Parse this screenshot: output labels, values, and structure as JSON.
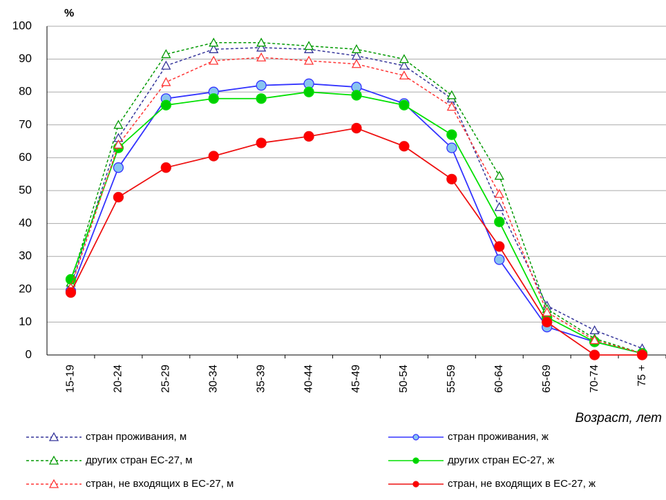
{
  "chart_data": {
    "type": "line",
    "y_label": "%",
    "x_label": "Возраст, лет",
    "categories": [
      "15-19",
      "20-24",
      "25-29",
      "30-34",
      "35-39",
      "40-44",
      "45-49",
      "50-54",
      "55-59",
      "60-64",
      "65-69",
      "70-74",
      "75 +"
    ],
    "ylim": [
      0,
      100
    ],
    "yticks": [
      0,
      10,
      20,
      30,
      40,
      50,
      60,
      70,
      80,
      90,
      100
    ],
    "grid": true,
    "series": [
      {
        "name": "стран проживания, м",
        "color": "#333399",
        "marker": "triangle",
        "marker_fill": "#ffffff",
        "dashed": true,
        "values": [
          21,
          66,
          88,
          93,
          93.5,
          93,
          91,
          88,
          78,
          45,
          15,
          7.5,
          2
        ]
      },
      {
        "name": "стран проживания, ж",
        "color": "#3333ff",
        "marker": "circle",
        "marker_fill": "#88c4f0",
        "dashed": false,
        "values": [
          19.5,
          57,
          78,
          80,
          82,
          82.5,
          81.5,
          76.5,
          63,
          29,
          8.5,
          4,
          0.5
        ]
      },
      {
        "name": "других стран ЕС-27,  м",
        "color": "#009900",
        "marker": "triangle",
        "marker_fill": "#ffffff",
        "dashed": true,
        "values": [
          22,
          70,
          91.5,
          95,
          95,
          94,
          93,
          90,
          79,
          54.5,
          14,
          5,
          0.5
        ]
      },
      {
        "name": "других стран ЕС-27,  ж",
        "color": "#00e000",
        "marker": "circle",
        "marker_fill": "#00d000",
        "dashed": false,
        "values": [
          23,
          63,
          76,
          78,
          78,
          80,
          79,
          76,
          67,
          40.5,
          11.5,
          4,
          0.5
        ]
      },
      {
        "name": "стран, не входящих в ЕС-27,  м",
        "color": "#ff3333",
        "marker": "triangle",
        "marker_fill": "#ffffff",
        "dashed": true,
        "values": [
          20.5,
          64,
          83,
          89.5,
          90.5,
          89.5,
          88.5,
          85,
          75.5,
          49,
          13,
          4.5,
          0.5
        ]
      },
      {
        "name": "стран, не входящих в ЕС-27,  ж",
        "color": "#ee1111",
        "marker": "circle",
        "marker_fill": "#ff0000",
        "dashed": false,
        "values": [
          19,
          48,
          57,
          60.5,
          64.5,
          66.5,
          69,
          63.5,
          53.5,
          33,
          10,
          0,
          0
        ]
      }
    ]
  }
}
